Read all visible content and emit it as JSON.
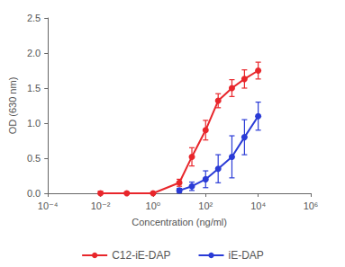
{
  "chart_data": {
    "type": "line",
    "x_label": "Concentration (ng/ml)",
    "y_label": "OD (630 nm)",
    "log": "x",
    "grid": false,
    "legend": "bottom",
    "xlim": [
      0.0001,
      1000000
    ],
    "xticks": [
      {
        "value": 0.0001,
        "label": "10⁻⁴"
      },
      {
        "value": 0.01,
        "label": "10⁻²"
      },
      {
        "value": 1,
        "label": "10⁰"
      },
      {
        "value": 100,
        "label": "10²"
      },
      {
        "value": 10000,
        "label": "10⁴"
      },
      {
        "value": 1000000,
        "label": "10⁶"
      }
    ],
    "ylim": [
      0,
      2.5
    ],
    "yticks": [
      {
        "value": 0,
        "label": "0.0"
      },
      0.5,
      {
        "value": 1,
        "label": "1.0"
      },
      1.5,
      {
        "value": 2,
        "label": "2.0"
      },
      2.5
    ],
    "series": [
      {
        "name": "C12-iE-DAP",
        "color": "#e8262b",
        "marker": "circle",
        "line_style": "solid",
        "x": [
          0.01,
          0.1,
          1,
          10,
          30,
          100,
          300,
          1000,
          3000,
          10000
        ],
        "values": [
          0,
          0,
          0,
          0.15,
          0.52,
          0.9,
          1.32,
          1.5,
          1.63,
          1.75
        ],
        "errors": [
          0.03,
          0.02,
          0.02,
          0.05,
          0.13,
          0.14,
          0.1,
          0.12,
          0.13,
          0.12
        ]
      },
      {
        "name": "iE-DAP",
        "color": "#2a3bd6",
        "marker": "circle",
        "line_style": "solid",
        "x": [
          10,
          30,
          100,
          300,
          1000,
          3000,
          10000
        ],
        "values": [
          0.04,
          0.1,
          0.2,
          0.35,
          0.52,
          0.8,
          1.1
        ],
        "errors": [
          0.03,
          0.06,
          0.12,
          0.2,
          0.3,
          0.25,
          0.2
        ]
      }
    ]
  }
}
